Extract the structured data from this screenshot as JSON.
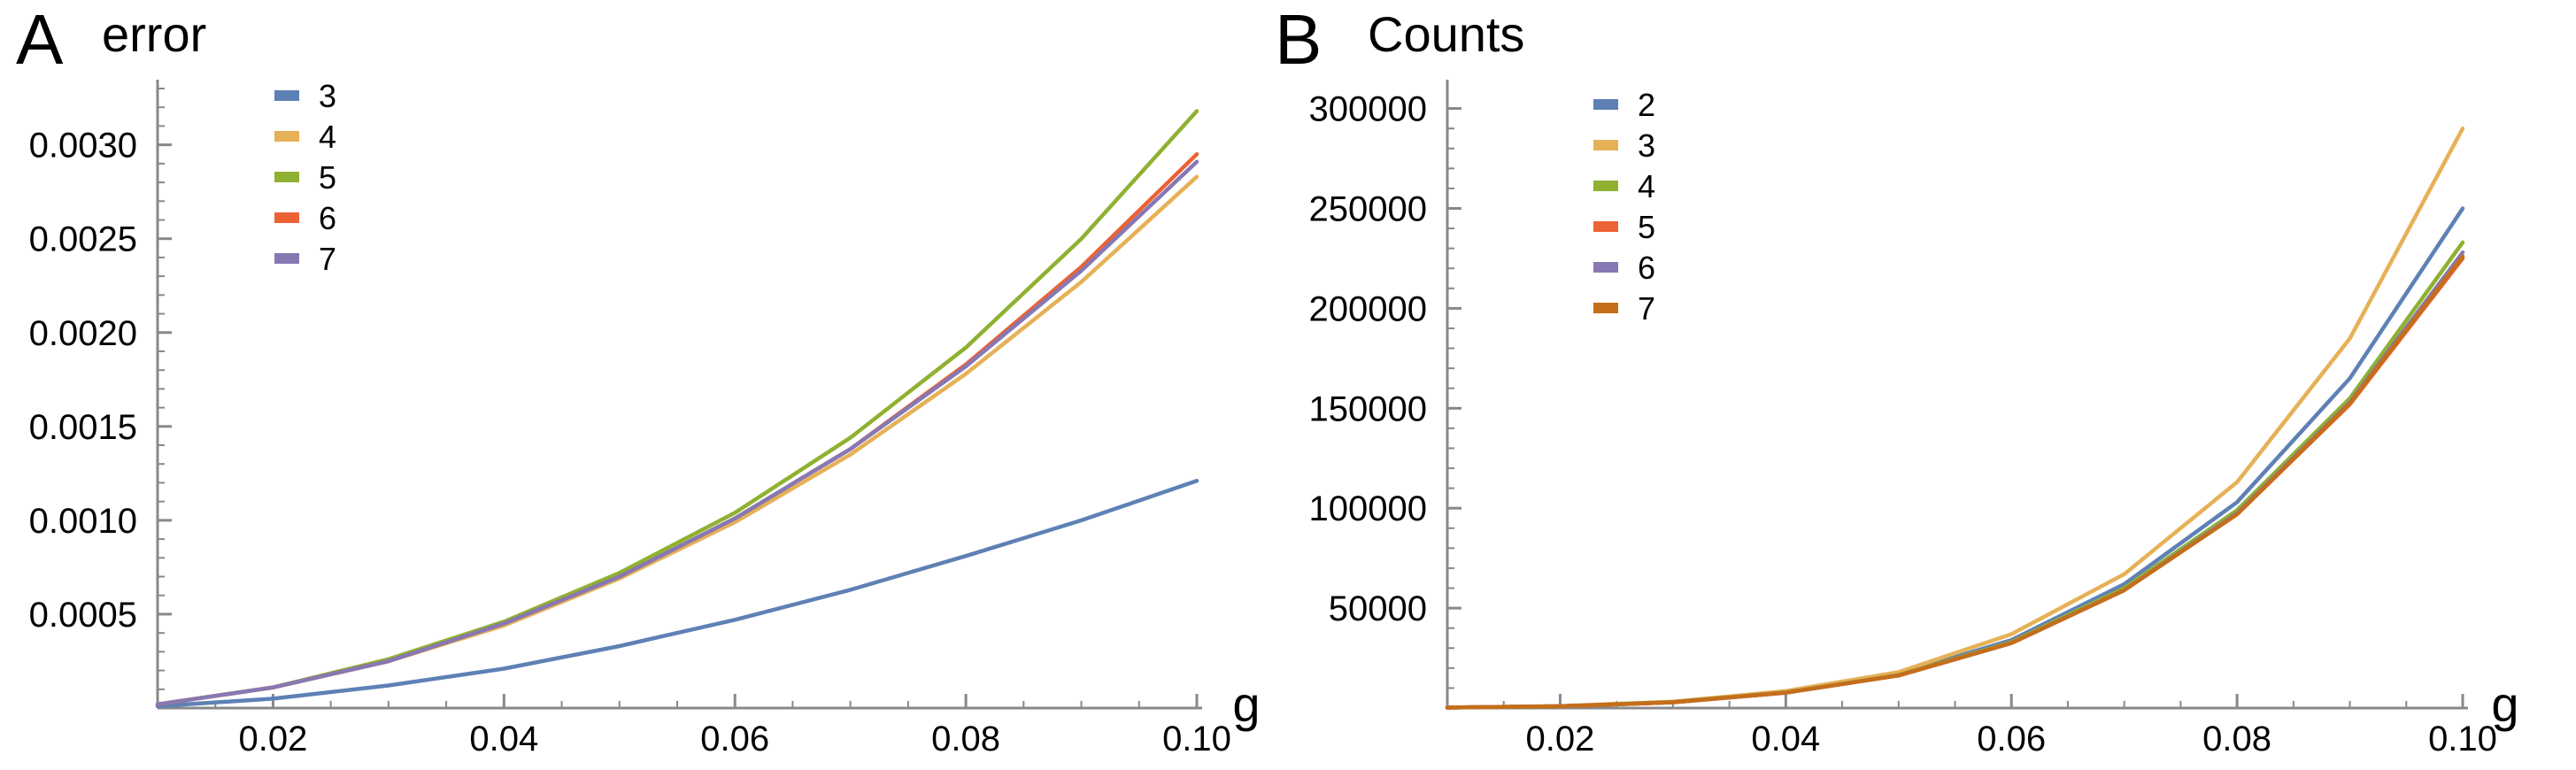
{
  "chart_data": [
    {
      "type": "line",
      "panel_letter": "A",
      "title": "error",
      "xlabel": "g",
      "ylabel": "",
      "xlim": [
        0.01,
        0.1
      ],
      "ylim": [
        0,
        0.0033
      ],
      "x_ticks": [
        0.02,
        0.04,
        0.06,
        0.08,
        0.1
      ],
      "x_tick_labels": [
        "0.02",
        "0.04",
        "0.06",
        "0.08",
        "0.10"
      ],
      "y_ticks": [
        0.0005,
        0.001,
        0.0015,
        0.002,
        0.0025,
        0.003
      ],
      "y_tick_labels": [
        "0.0005",
        "0.0010",
        "0.0015",
        "0.0020",
        "0.0025",
        "0.0030"
      ],
      "legend_position": "top-left",
      "x": [
        0.01,
        0.02,
        0.03,
        0.04,
        0.05,
        0.06,
        0.07,
        0.08,
        0.09,
        0.1
      ],
      "series": [
        {
          "name": "3",
          "color": "#5E81B5",
          "values": [
            1e-05,
            5e-05,
            0.00012,
            0.00021,
            0.00033,
            0.00047,
            0.00063,
            0.00081,
            0.001,
            0.00121
          ]
        },
        {
          "name": "4",
          "color": "#E6B156",
          "values": [
            2e-05,
            0.00011,
            0.00025,
            0.00044,
            0.00069,
            0.00099,
            0.00135,
            0.00178,
            0.00227,
            0.00283
          ]
        },
        {
          "name": "5",
          "color": "#8FB131",
          "values": [
            2e-05,
            0.00011,
            0.00026,
            0.00046,
            0.00072,
            0.00104,
            0.00144,
            0.00192,
            0.0025,
            0.00318
          ]
        },
        {
          "name": "6",
          "color": "#EB6235",
          "values": [
            2e-05,
            0.00011,
            0.00025,
            0.00045,
            0.0007,
            0.00101,
            0.00138,
            0.00183,
            0.00235,
            0.00295
          ]
        },
        {
          "name": "7",
          "color": "#8778B3",
          "values": [
            2e-05,
            0.00011,
            0.00025,
            0.00045,
            0.0007,
            0.00101,
            0.00138,
            0.00182,
            0.00233,
            0.00291
          ]
        }
      ]
    },
    {
      "type": "line",
      "panel_letter": "B",
      "title": "Counts",
      "xlabel": "g",
      "ylabel": "",
      "xlim": [
        0.01,
        0.1
      ],
      "ylim": [
        0,
        310000
      ],
      "x_ticks": [
        0.02,
        0.04,
        0.06,
        0.08,
        0.1
      ],
      "x_tick_labels": [
        "0.02",
        "0.04",
        "0.06",
        "0.08",
        "0.10"
      ],
      "y_ticks": [
        50000,
        100000,
        150000,
        200000,
        250000,
        300000
      ],
      "y_tick_labels": [
        "50000",
        "100000",
        "150000",
        "200000",
        "250000",
        "300000"
      ],
      "legend_position": "top-left",
      "x": [
        0.01,
        0.02,
        0.03,
        0.04,
        0.05,
        0.06,
        0.07,
        0.08,
        0.09,
        0.1
      ],
      "series": [
        {
          "name": "2",
          "color": "#5E81B5",
          "values": [
            200,
            900,
            3000,
            8000,
            17000,
            34000,
            62000,
            103000,
            165000,
            250000
          ]
        },
        {
          "name": "3",
          "color": "#E6B156",
          "values": [
            200,
            1000,
            3200,
            8500,
            18000,
            37000,
            67000,
            113000,
            185000,
            290000
          ]
        },
        {
          "name": "4",
          "color": "#8FB131",
          "values": [
            200,
            900,
            3000,
            7800,
            16500,
            33000,
            60000,
            99000,
            155000,
            233000
          ]
        },
        {
          "name": "5",
          "color": "#EB6235",
          "values": [
            200,
            900,
            2900,
            7700,
            16300,
            32500,
            59000,
            97000,
            152000,
            225000
          ]
        },
        {
          "name": "6",
          "color": "#8778B3",
          "values": [
            200,
            900,
            2900,
            7700,
            16300,
            32500,
            59000,
            97500,
            153000,
            228000
          ]
        },
        {
          "name": "7",
          "color": "#C56E1A",
          "values": [
            200,
            900,
            2900,
            7700,
            16300,
            32500,
            59000,
            97000,
            152500,
            226000
          ]
        }
      ]
    }
  ]
}
